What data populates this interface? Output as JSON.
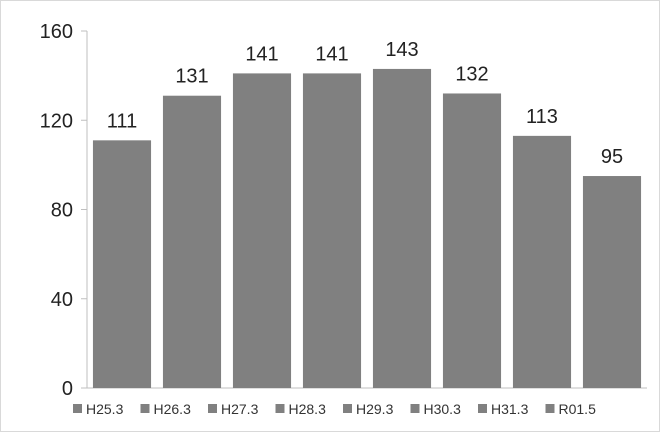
{
  "chart_data": {
    "type": "bar",
    "title": "",
    "xlabel": "",
    "ylabel": "",
    "categories": [
      "H25.3",
      "H26.3",
      "H27.3",
      "H28.3",
      "H29.3",
      "H30.3",
      "H31.3",
      "R01.5"
    ],
    "values": [
      111,
      131,
      141,
      141,
      143,
      132,
      113,
      95
    ],
    "data_labels": [
      "111",
      "131",
      "141",
      "141",
      "143",
      "132",
      "113",
      "95"
    ],
    "ylim": [
      0,
      160
    ],
    "yticks": [
      0,
      40,
      80,
      120,
      160
    ],
    "ytick_labels": [
      "0",
      "40",
      "80",
      "120",
      "160"
    ],
    "grid": false,
    "legend_position": "bottom",
    "bar_color": "#808080",
    "axis_color": "#bfbfbf"
  }
}
